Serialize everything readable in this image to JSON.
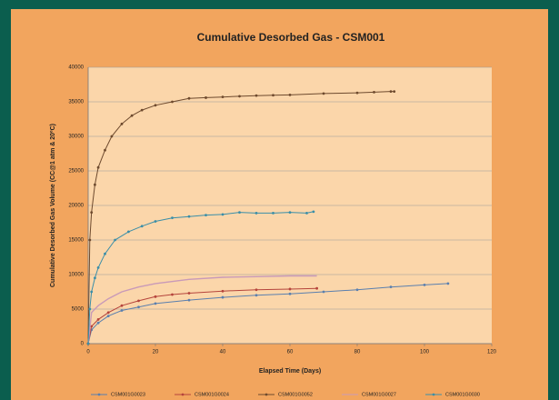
{
  "chart_data": {
    "type": "line",
    "title": "Cumulative Desorbed Gas - CSM001",
    "x_label": "Elapsed Time (Days)",
    "y_label": "Cumulative Desorbed Gas Volume (CC@1 atm & 20ºC)",
    "xlim": [
      0,
      120
    ],
    "xticks": [
      0,
      20,
      40,
      60,
      80,
      100,
      120
    ],
    "ylim": [
      0,
      40000
    ],
    "yticks": [
      0,
      5000,
      10000,
      15000,
      20000,
      25000,
      30000,
      35000,
      40000
    ],
    "grid": true,
    "legend": "bottom",
    "series": [
      {
        "name": "CSM001G0023",
        "color": "#5a7fae",
        "marker": true,
        "x": [
          0,
          1,
          3,
          6,
          10,
          15,
          20,
          30,
          40,
          50,
          60,
          70,
          80,
          90,
          100,
          107
        ],
        "values": [
          0,
          2000,
          3000,
          4000,
          4800,
          5300,
          5800,
          6300,
          6700,
          7000,
          7200,
          7500,
          7800,
          8200,
          8500,
          8700
        ]
      },
      {
        "name": "CSM001G0024",
        "color": "#b5443c",
        "marker": true,
        "x": [
          0,
          1,
          3,
          6,
          10,
          15,
          20,
          25,
          30,
          40,
          50,
          60,
          68
        ],
        "values": [
          0,
          2500,
          3500,
          4500,
          5500,
          6200,
          6800,
          7100,
          7300,
          7600,
          7800,
          7900,
          8000
        ]
      },
      {
        "name": "CSM001G0052",
        "color": "#6e4a2e",
        "marker": true,
        "x": [
          0,
          0.5,
          1,
          2,
          3,
          5,
          7,
          10,
          13,
          16,
          20,
          25,
          30,
          35,
          40,
          45,
          50,
          55,
          60,
          70,
          80,
          85,
          90,
          91
        ],
        "values": [
          0,
          15000,
          19000,
          23000,
          25500,
          28000,
          30000,
          31800,
          33000,
          33800,
          34500,
          35000,
          35500,
          35600,
          35700,
          35800,
          35900,
          35950,
          36000,
          36200,
          36300,
          36400,
          36500,
          36500
        ]
      },
      {
        "name": "CSM001G0027",
        "color": "#c99ab8",
        "marker": false,
        "x": [
          0,
          1,
          3,
          6,
          10,
          15,
          20,
          30,
          40,
          50,
          60,
          68
        ],
        "values": [
          0,
          4500,
          5500,
          6500,
          7500,
          8200,
          8700,
          9300,
          9600,
          9700,
          9800,
          9800
        ]
      },
      {
        "name": "CSM001G0030",
        "color": "#3a8ea8",
        "marker": true,
        "x": [
          0,
          0.5,
          1,
          2,
          3,
          5,
          8,
          12,
          16,
          20,
          25,
          30,
          35,
          40,
          45,
          50,
          55,
          60,
          65,
          67
        ],
        "values": [
          0,
          5000,
          7500,
          9500,
          11000,
          13000,
          15000,
          16200,
          17000,
          17700,
          18200,
          18400,
          18600,
          18700,
          19000,
          18900,
          18900,
          19000,
          18900,
          19100
        ]
      }
    ]
  }
}
